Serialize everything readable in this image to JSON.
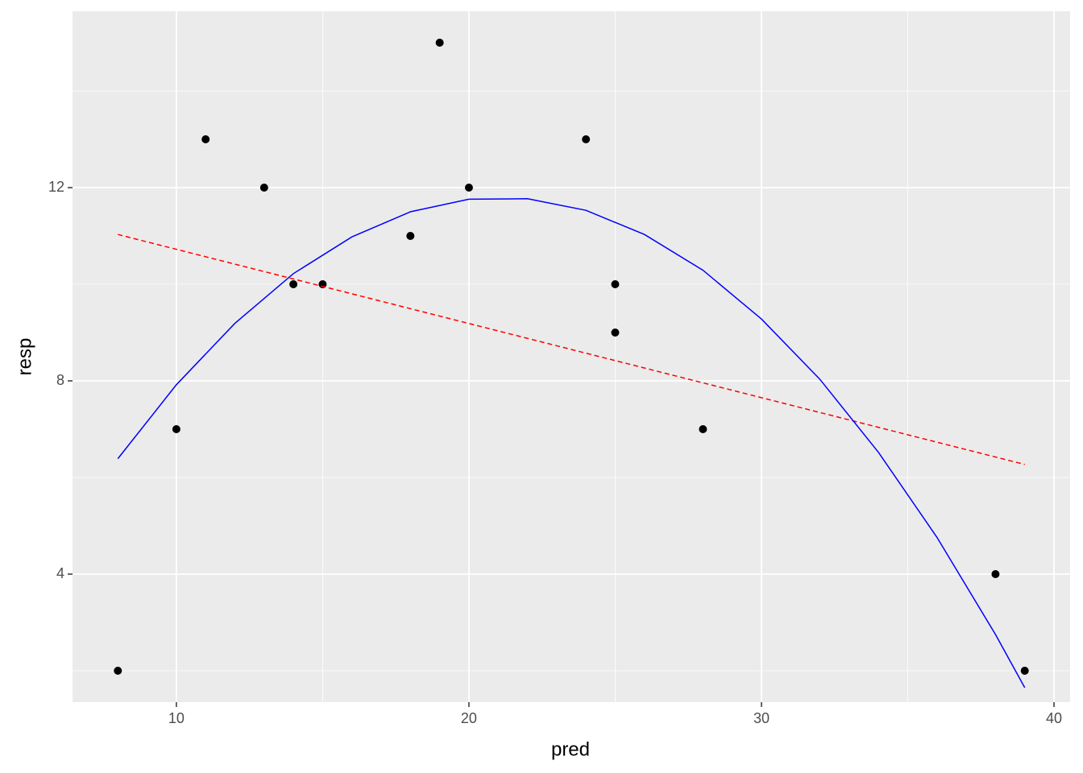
{
  "chart_data": {
    "type": "scatter",
    "x_label": "pred",
    "y_label": "resp",
    "series": [
      {
        "type": "scatter",
        "color": "#000000",
        "x": [
          8,
          10,
          11,
          13,
          14,
          15,
          18,
          19,
          20,
          24,
          25,
          25,
          28,
          38,
          39
        ],
        "values": [
          2,
          7,
          13,
          12,
          10,
          10,
          11,
          15,
          12,
          13,
          10,
          9,
          7,
          4,
          2
        ]
      },
      {
        "type": "line",
        "color": "#ff0000",
        "dashed": true,
        "x": [
          8,
          39
        ],
        "values": [
          11.03,
          6.27
        ]
      },
      {
        "type": "line",
        "color": "#0000ff",
        "dashed": false,
        "x": [
          8,
          10,
          12,
          14,
          16,
          18,
          20,
          22,
          24,
          26,
          28,
          30,
          32,
          34,
          36,
          38,
          39
        ],
        "values": [
          6.39,
          7.92,
          9.19,
          10.22,
          10.98,
          11.5,
          11.76,
          11.77,
          11.53,
          11.03,
          10.29,
          9.28,
          8.03,
          6.52,
          4.76,
          2.75,
          1.65
        ]
      }
    ],
    "xlim": [
      6.45,
      40.55
    ],
    "xticks": [
      10,
      20,
      30,
      40
    ],
    "ylim": [
      1.35,
      15.65
    ],
    "yticks": [
      4,
      8,
      12
    ],
    "grid": true
  }
}
